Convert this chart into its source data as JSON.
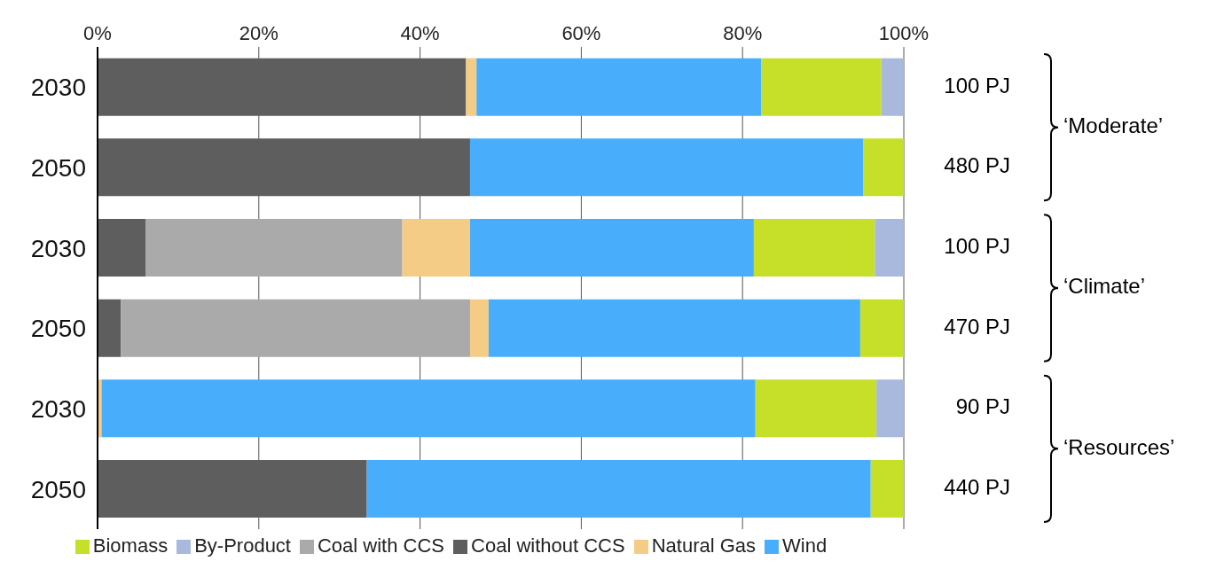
{
  "chart_data": {
    "type": "bar",
    "orientation": "horizontal",
    "stacked": true,
    "categories": [
      "2030",
      "2050",
      "2030",
      "2050",
      "2030",
      "2050"
    ],
    "series": [
      {
        "name": "Coal without CCS",
        "color": "#5e5e5e",
        "values": [
          45.7,
          46.2,
          6.0,
          2.9,
          null,
          33.4
        ]
      },
      {
        "name": "Coal with CCS",
        "color": "#aaaaaa",
        "values": [
          null,
          null,
          31.8,
          43.3,
          null,
          null
        ]
      },
      {
        "name": "Natural Gas",
        "color": "#f5cc85",
        "values": [
          1.3,
          null,
          8.4,
          2.3,
          0.5,
          null
        ]
      },
      {
        "name": "Wind",
        "color": "#48aefc",
        "values": [
          35.3,
          48.8,
          35.2,
          46.1,
          81.1,
          62.5
        ]
      },
      {
        "name": "Biomass",
        "color": "#c6e02a",
        "values": [
          14.9,
          5.0,
          15.0,
          5.4,
          15.0,
          4.1
        ]
      },
      {
        "name": "By-Product",
        "color": "#a9b9de",
        "values": [
          2.8,
          null,
          3.6,
          null,
          3.4,
          null
        ]
      }
    ],
    "xlim": [
      0,
      100
    ],
    "xticks": [
      {
        "value": 0,
        "label": "0%"
      },
      {
        "value": 20,
        "label": "20%"
      },
      {
        "value": 40,
        "label": "40%"
      },
      {
        "value": 60,
        "label": "60%"
      },
      {
        "value": 80,
        "label": "80%"
      },
      {
        "value": 100,
        "label": "100%"
      }
    ],
    "grid": "x",
    "legend": "bottom",
    "annotations": [
      "100 PJ",
      "480 PJ",
      "100 PJ",
      "470 PJ",
      "90 PJ",
      "440 PJ",
      "‘Moderate’",
      "‘Climate’",
      "‘Resources’"
    ]
  }
}
